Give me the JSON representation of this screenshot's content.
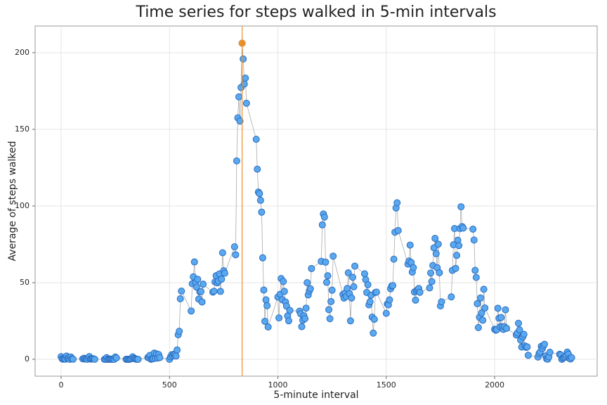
{
  "chart_data": {
    "type": "scatter",
    "title": "Time series for steps walked in 5-min intervals",
    "x_label": "5-minute interval",
    "y_label": "Average of steps walked",
    "xlim": [
      -120,
      2473
    ],
    "ylim": [
      -11,
      217.4
    ],
    "xticks": [
      0,
      500,
      1000,
      1500,
      2000
    ],
    "yticks": [
      0,
      50,
      100,
      150,
      200
    ],
    "grid": true,
    "line_color": "#aaaaaa",
    "highlight": {
      "x": 835,
      "y": 206.2,
      "color": "#e8902a"
    },
    "series": [
      {
        "color": "#5aa8ef",
        "edge": "#2a6cbf",
        "x": [
          0,
          5,
          10,
          15,
          20,
          25,
          30,
          35,
          40,
          45,
          50,
          55,
          100,
          105,
          110,
          115,
          120,
          125,
          130,
          135,
          140,
          145,
          150,
          155,
          200,
          205,
          210,
          215,
          220,
          225,
          230,
          235,
          240,
          245,
          250,
          255,
          300,
          305,
          310,
          315,
          320,
          325,
          330,
          335,
          340,
          345,
          350,
          355,
          400,
          405,
          410,
          415,
          420,
          425,
          430,
          435,
          440,
          445,
          450,
          455,
          500,
          505,
          510,
          515,
          520,
          525,
          530,
          535,
          540,
          545,
          550,
          555,
          600,
          605,
          610,
          615,
          620,
          625,
          630,
          635,
          640,
          645,
          650,
          655,
          700,
          705,
          710,
          715,
          720,
          725,
          730,
          735,
          740,
          745,
          750,
          755,
          800,
          805,
          810,
          815,
          820,
          825,
          830,
          835,
          840,
          845,
          850,
          855,
          900,
          905,
          910,
          915,
          920,
          925,
          930,
          935,
          940,
          945,
          950,
          955,
          1000,
          1005,
          1010,
          1015,
          1020,
          1025,
          1030,
          1035,
          1040,
          1045,
          1050,
          1055,
          1100,
          1105,
          1110,
          1115,
          1120,
          1125,
          1130,
          1135,
          1140,
          1145,
          1150,
          1155,
          1200,
          1205,
          1210,
          1215,
          1220,
          1225,
          1230,
          1235,
          1240,
          1245,
          1250,
          1255,
          1300,
          1305,
          1310,
          1315,
          1320,
          1325,
          1330,
          1335,
          1340,
          1345,
          1350,
          1355,
          1400,
          1405,
          1410,
          1415,
          1420,
          1425,
          1430,
          1435,
          1440,
          1445,
          1450,
          1455,
          1500,
          1505,
          1510,
          1515,
          1520,
          1525,
          1530,
          1535,
          1540,
          1545,
          1550,
          1555,
          1600,
          1605,
          1610,
          1615,
          1620,
          1625,
          1630,
          1635,
          1640,
          1645,
          1650,
          1655,
          1700,
          1705,
          1710,
          1715,
          1720,
          1725,
          1730,
          1735,
          1740,
          1745,
          1750,
          1755,
          1800,
          1805,
          1810,
          1815,
          1820,
          1825,
          1830,
          1835,
          1840,
          1845,
          1850,
          1855,
          1900,
          1905,
          1910,
          1915,
          1920,
          1925,
          1930,
          1935,
          1940,
          1945,
          1950,
          1955,
          2000,
          2005,
          2010,
          2015,
          2020,
          2025,
          2030,
          2035,
          2040,
          2045,
          2050,
          2055,
          2100,
          2105,
          2110,
          2115,
          2120,
          2125,
          2130,
          2135,
          2140,
          2145,
          2150,
          2155,
          2200,
          2205,
          2210,
          2215,
          2220,
          2225,
          2230,
          2235,
          2240,
          2245,
          2250,
          2255,
          2300,
          2305,
          2310,
          2315,
          2320,
          2325,
          2330,
          2335,
          2340,
          2345,
          2350,
          2355
        ],
        "values": [
          1.7,
          0.3,
          0.1,
          0.2,
          0.1,
          2.1,
          0.5,
          0.9,
          0,
          1.5,
          0.3,
          0.1,
          0.3,
          0.7,
          0.2,
          0.3,
          0,
          1.1,
          1.8,
          0.2,
          0.2,
          0.4,
          0.3,
          0,
          0,
          0,
          1.1,
          0,
          0,
          0.1,
          0,
          0.2,
          0,
          0,
          1.5,
          0.9,
          0,
          0,
          0,
          0,
          0.2,
          0.6,
          1.6,
          0.6,
          0.5,
          0.1,
          0,
          0,
          1.2,
          0.9,
          2.6,
          0,
          0.3,
          0.4,
          4.1,
          0.7,
          3.5,
          0.8,
          3.1,
          1.1,
          0,
          1.6,
          3,
          2.2,
          3.3,
          3,
          2.1,
          6.1,
          16,
          18.3,
          39.5,
          44.5,
          31.5,
          49.3,
          53.8,
          63.5,
          50,
          47.1,
          52.2,
          39.3,
          44,
          44.2,
          37.4,
          49,
          43.8,
          44.4,
          50.5,
          54.5,
          49.9,
          51,
          55.7,
          44.3,
          52.3,
          69.5,
          57.8,
          56.2,
          73.4,
          68.2,
          129.4,
          157.5,
          171.2,
          155.4,
          177.3,
          206.2,
          195.9,
          179.6,
          183.4,
          167,
          143.5,
          124,
          109.1,
          108.1,
          103.7,
          96,
          66.2,
          45.2,
          24.8,
          38.8,
          35,
          21.1,
          40.6,
          27,
          42.4,
          52.7,
          38.9,
          50.8,
          44.3,
          37.4,
          34.7,
          28.3,
          25.1,
          31.9,
          31.4,
          29.7,
          21.3,
          25.5,
          28.4,
          26.5,
          33.4,
          50,
          42,
          44.6,
          46,
          59.2,
          63.9,
          87.7,
          94.8,
          92.8,
          63.4,
          50.2,
          54.5,
          32.4,
          26.5,
          37.7,
          45.1,
          67.3,
          42.3,
          39.9,
          43.3,
          41,
          46.2,
          56.4,
          42.8,
          25.1,
          40,
          53.5,
          47.3,
          60.8,
          55.8,
          52,
          43.6,
          48.7,
          35.5,
          37.5,
          41.8,
          27.5,
          17.1,
          26.1,
          43.6,
          43.8,
          30,
          36.1,
          35.5,
          38.8,
          46,
          47.8,
          48.1,
          65.3,
          82.9,
          98.7,
          102.1,
          84,
          62.1,
          64.1,
          74.5,
          63.2,
          56.9,
          59.8,
          43.9,
          38.6,
          44.7,
          45.5,
          46.2,
          43.7,
          46.6,
          56.3,
          50.7,
          61.2,
          72.7,
          78.9,
          68.9,
          59.7,
          75.1,
          56.5,
          34.8,
          37.5,
          40.7,
          58,
          74.7,
          85.3,
          59.3,
          67.8,
          77.7,
          74.2,
          85.3,
          99.5,
          86.6,
          85.6,
          84.9,
          77.8,
          58,
          53.4,
          36.3,
          20.7,
          27.4,
          40,
          30.2,
          25.5,
          45.7,
          33.5,
          19.6,
          19,
          19.3,
          33.3,
          26.8,
          21.2,
          27.3,
          21.3,
          19.5,
          21.3,
          32.3,
          20.2,
          15.9,
          17.2,
          23.5,
          19.2,
          12.5,
          8,
          14.7,
          16.3,
          8.7,
          7.8,
          8.1,
          2.6,
          1.5,
          3.7,
          4.8,
          8.5,
          7.1,
          8.7,
          9.8,
          2.2,
          0.3,
          0.1,
          1.6,
          4.6,
          3.3,
          2.8,
          0,
          0.8,
          1,
          1.6,
          2.6,
          4.7,
          3.3,
          0.6,
          0.2,
          1.1
        ]
      }
    ]
  }
}
